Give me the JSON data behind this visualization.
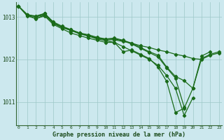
{
  "xlabel": "Graphe pression niveau de la mer (hPa)",
  "bg_color": "#cce8ee",
  "grid_color": "#9dc8c8",
  "line_color": "#1a6b1a",
  "xlim": [
    -0.3,
    23.3
  ],
  "ylim": [
    1010.45,
    1013.35
  ],
  "yticks": [
    1011,
    1012,
    1013
  ],
  "xticks": [
    0,
    1,
    2,
    3,
    4,
    5,
    6,
    7,
    8,
    9,
    10,
    11,
    12,
    13,
    14,
    15,
    16,
    17,
    18,
    19,
    20,
    21,
    22,
    23
  ],
  "lines": [
    {
      "x": [
        0,
        1,
        2,
        3,
        4,
        5,
        6,
        7,
        8,
        9,
        10,
        11,
        12,
        13,
        14,
        15,
        16,
        17,
        18,
        19,
        20,
        21,
        22,
        23
      ],
      "y": [
        1013.25,
        1013.05,
        1012.95,
        1013.05,
        1012.85,
        1012.75,
        1012.7,
        1012.62,
        1012.55,
        1012.5,
        1012.46,
        1012.46,
        1012.42,
        1012.38,
        1012.32,
        1012.28,
        1012.22,
        1012.18,
        1012.12,
        1012.08,
        1012.02,
        1012.0,
        1012.1,
        1012.15
      ]
    },
    {
      "x": [
        0,
        1,
        2,
        3,
        4,
        5,
        6,
        7,
        8,
        9,
        10,
        11,
        12,
        13,
        14,
        15,
        16,
        17,
        18,
        19,
        20,
        21,
        22,
        23
      ],
      "y": [
        1013.25,
        1013.05,
        1013.02,
        1013.08,
        1012.88,
        1012.78,
        1012.7,
        1012.62,
        1012.56,
        1012.5,
        1012.48,
        1012.5,
        1012.45,
        1012.38,
        1012.28,
        1012.18,
        1012.1,
        1011.82,
        1011.6,
        1011.5,
        1011.32,
        1012.02,
        1012.12,
        1012.18
      ]
    },
    {
      "x": [
        0,
        1,
        2,
        3,
        4,
        5,
        6,
        7,
        8,
        9,
        10,
        11,
        12,
        13,
        14,
        15,
        16,
        17,
        18,
        19,
        20,
        21,
        22
      ],
      "y": [
        1013.25,
        1013.05,
        1013.0,
        1013.05,
        1012.85,
        1012.75,
        1012.68,
        1012.6,
        1012.55,
        1012.48,
        1012.44,
        1012.4,
        1012.18,
        1012.22,
        1012.12,
        1012.02,
        1011.82,
        1011.48,
        1010.75,
        1010.85,
        1011.32,
        1012.08,
        1012.18
      ]
    },
    {
      "x": [
        0,
        1,
        2,
        3,
        4,
        5,
        6,
        7,
        8,
        9,
        10,
        11,
        12,
        13,
        14,
        15,
        16,
        17,
        18,
        19
      ],
      "y": [
        1013.25,
        1013.05,
        1013.0,
        1013.08,
        1012.86,
        1012.76,
        1012.68,
        1012.62,
        1012.58,
        1012.52,
        1012.48,
        1012.48,
        1012.44,
        1012.36,
        1012.26,
        1012.16,
        1012.06,
        1011.8,
        1011.56,
        1010.88
      ]
    },
    {
      "x": [
        0,
        1,
        2,
        3,
        4,
        5,
        6,
        7,
        8,
        9,
        10,
        11,
        12,
        13,
        14,
        15,
        16,
        17,
        18,
        19,
        20
      ],
      "y": [
        1013.25,
        1013.02,
        1012.96,
        1013.02,
        1012.82,
        1012.72,
        1012.62,
        1012.56,
        1012.5,
        1012.45,
        1012.4,
        1012.4,
        1012.3,
        1012.2,
        1012.1,
        1012.0,
        1011.86,
        1011.62,
        1011.32,
        1010.68,
        1011.1
      ]
    }
  ]
}
